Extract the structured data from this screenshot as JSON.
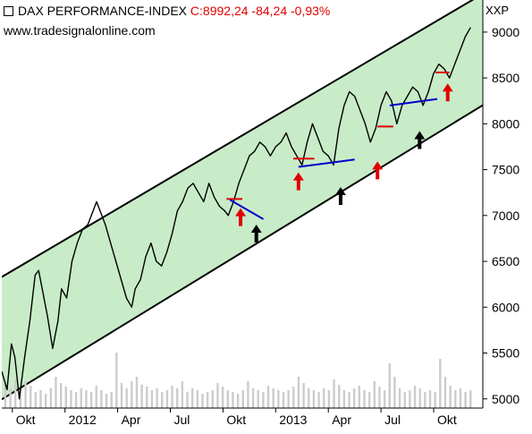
{
  "header": {
    "index_name": "DAX PERFORMANCE-INDEX",
    "quote": "C:8992,24 -84,24 -0,93%",
    "source": "www.tradesignalonline.com",
    "symbol": "XXP"
  },
  "colors": {
    "channel_fill": "#c8ecc8",
    "price_line": "#000000",
    "volume": "#cccccc",
    "red_arrow": "#e00000",
    "black_arrow": "#000000",
    "trend_line_blue": "#0000cc",
    "support_red": "#e00000"
  },
  "chart_data": {
    "type": "line",
    "title": "DAX PERFORMANCE-INDEX",
    "ylim": [
      4900,
      9350
    ],
    "y_ticks": [
      5000,
      5500,
      6000,
      6500,
      7000,
      7500,
      8000,
      8500,
      9000
    ],
    "y_tick_labels": [
      "5000",
      "5500",
      "6000",
      "6500",
      "7000",
      "7500",
      "8000",
      "8500",
      "9000"
    ],
    "x_tick_labels": [
      "Okt",
      "2012",
      "Apr",
      "Jul",
      "Okt",
      "2013",
      "Apr",
      "Jul",
      "Okt"
    ],
    "x_tick_positions": [
      0.6,
      3.6,
      6.6,
      9.6,
      12.6,
      15.6,
      18.6,
      21.6,
      24.6
    ],
    "xlim": [
      0,
      27.4
    ],
    "grid": false,
    "series": [
      {
        "values_note": "",
        "x": [
          0,
          0.3,
          0.55,
          0.75,
          1.0,
          1.3,
          1.6,
          1.9,
          2.1,
          2.3,
          2.6,
          2.9,
          3.2,
          3.4,
          3.7,
          4.0,
          4.3,
          4.6,
          4.9,
          5.2,
          5.4,
          5.6,
          5.9,
          6.2,
          6.5,
          6.8,
          7.1,
          7.4,
          7.6,
          7.9,
          8.2,
          8.5,
          8.8,
          9.1,
          9.4,
          9.7,
          10.0,
          10.3,
          10.6,
          10.9,
          11.2,
          11.5,
          11.8,
          12.1,
          12.4,
          12.7,
          12.9,
          13.2,
          13.5,
          13.8,
          14.1,
          14.4,
          14.7,
          15.0,
          15.3,
          15.6,
          15.9,
          16.2,
          16.5,
          16.8,
          17.1,
          17.4,
          17.7,
          18.0,
          18.3,
          18.6,
          18.9,
          19.2,
          19.5,
          19.8,
          20.1,
          20.4,
          20.7,
          21.0,
          21.3,
          21.6,
          21.9,
          22.2,
          22.5,
          22.8,
          23.1,
          23.4,
          23.7,
          24.0,
          24.3,
          24.6,
          24.9,
          25.2,
          25.5,
          25.8,
          26.1,
          26.4,
          26.7
        ],
        "y": [
          5300,
          5100,
          5600,
          5450,
          5000,
          5450,
          5850,
          6350,
          6400,
          6200,
          5900,
          5550,
          5850,
          6200,
          6100,
          6500,
          6700,
          6850,
          6900,
          7050,
          7150,
          7050,
          6900,
          6700,
          6500,
          6300,
          6100,
          6000,
          6200,
          6300,
          6550,
          6700,
          6500,
          6450,
          6600,
          6800,
          7050,
          7150,
          7300,
          7350,
          7250,
          7150,
          7350,
          7200,
          7100,
          7050,
          7000,
          7150,
          7350,
          7500,
          7650,
          7700,
          7800,
          7750,
          7650,
          7750,
          7800,
          7900,
          7750,
          7650,
          7550,
          7800,
          8000,
          7850,
          7700,
          7650,
          7550,
          7950,
          8200,
          8350,
          8300,
          8150,
          8000,
          7800,
          7950,
          8200,
          8350,
          8250,
          8000,
          8200,
          8300,
          8400,
          8350,
          8200,
          8350,
          8550,
          8650,
          8600,
          8500,
          8650,
          8800,
          8950,
          9050
        ]
      }
    ],
    "channel": {
      "upper": [
        [
          0.0,
          6330
        ],
        [
          28.4,
          9530
        ]
      ],
      "lower": [
        [
          0.0,
          4995
        ],
        [
          28.4,
          8320
        ]
      ]
    },
    "support_lines_red": [
      {
        "x": [
          12.8,
          13.7
        ],
        "y": [
          7180,
          7180
        ]
      },
      {
        "x": [
          16.6,
          17.8
        ],
        "y": [
          7620,
          7620
        ]
      },
      {
        "x": [
          21.4,
          22.3
        ],
        "y": [
          7970,
          7970
        ]
      },
      {
        "x": [
          24.7,
          25.5
        ],
        "y": [
          8560,
          8560
        ]
      }
    ],
    "trend_lines_blue": [
      {
        "x": [
          13.0,
          14.9
        ],
        "y": [
          7170,
          6960
        ]
      },
      {
        "x": [
          16.9,
          20.1
        ],
        "y": [
          7530,
          7610
        ]
      },
      {
        "x": [
          22.1,
          24.8
        ],
        "y": [
          8200,
          8270
        ]
      }
    ],
    "arrows_red": [
      {
        "x": 13.6,
        "y_tip": 7080
      },
      {
        "x": 16.9,
        "y_tip": 7470
      },
      {
        "x": 21.4,
        "y_tip": 7590
      },
      {
        "x": 25.4,
        "y_tip": 8440
      }
    ],
    "arrows_black": [
      {
        "x": 14.5,
        "y_tip": 6900
      },
      {
        "x": 19.3,
        "y_tip": 7310
      },
      {
        "x": 23.8,
        "y_tip": 7920
      }
    ],
    "volume_bars": [
      0.28,
      0.22,
      0.32,
      0.2,
      0.3,
      0.25,
      0.18,
      0.2,
      0.16,
      0.22,
      0.35,
      0.28,
      0.24,
      0.2,
      0.18,
      0.22,
      0.2,
      0.18,
      0.25,
      0.2,
      0.16,
      0.18,
      0.62,
      0.28,
      0.22,
      0.3,
      0.35,
      0.26,
      0.24,
      0.2,
      0.22,
      0.18,
      0.2,
      0.25,
      0.22,
      0.3,
      0.18,
      0.22,
      0.2,
      0.16,
      0.18,
      0.2,
      0.28,
      0.24,
      0.2,
      0.18,
      0.16,
      0.2,
      0.3,
      0.22,
      0.2,
      0.18,
      0.25,
      0.22,
      0.2,
      0.18,
      0.2,
      0.24,
      0.35,
      0.28,
      0.22,
      0.2,
      0.18,
      0.22,
      0.2,
      0.32,
      0.26,
      0.2,
      0.18,
      0.22,
      0.25,
      0.2,
      0.18,
      0.3,
      0.24,
      0.2,
      0.5,
      0.35,
      0.22,
      0.18,
      0.2,
      0.25,
      0.22,
      0.18,
      0.2,
      0.18,
      0.55,
      0.35,
      0.25,
      0.2,
      0.22,
      0.18,
      0.2
    ]
  }
}
